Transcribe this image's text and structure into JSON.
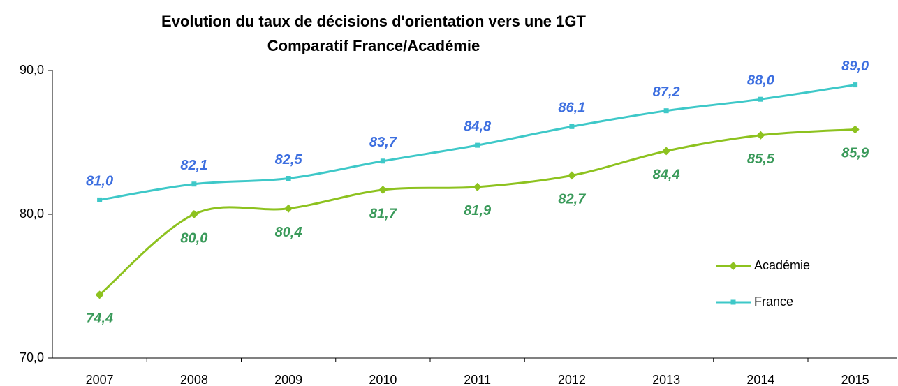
{
  "chart_data": {
    "type": "line",
    "title": "Evolution du taux de décisions d'orientation vers une 1GT",
    "subtitle": "Comparatif France/Académie",
    "categories": [
      "2007",
      "2008",
      "2009",
      "2010",
      "2011",
      "2012",
      "2013",
      "2014",
      "2015"
    ],
    "series": [
      {
        "name": "Académie",
        "color": "#8dc21f",
        "label_color": "#3a9a5a",
        "values": [
          74.4,
          80.0,
          80.4,
          81.7,
          81.9,
          82.7,
          84.4,
          85.5,
          85.9
        ],
        "value_labels": [
          "74,4",
          "80,0",
          "80,4",
          "81,7",
          "81,9",
          "82,7",
          "84,4",
          "85,5",
          "85,9"
        ]
      },
      {
        "name": "France",
        "color": "#3ec8c8",
        "label_color": "#3d6fe0",
        "values": [
          81.0,
          82.1,
          82.5,
          83.7,
          84.8,
          86.1,
          87.2,
          88.0,
          89.0
        ],
        "value_labels": [
          "81,0",
          "82,1",
          "82,5",
          "83,7",
          "84,8",
          "86,1",
          "87,2",
          "88,0",
          "89,0"
        ]
      }
    ],
    "ylim": [
      70,
      90
    ],
    "yticks": [
      {
        "value": 70,
        "label": "70,0"
      },
      {
        "value": 80,
        "label": "80,0"
      },
      {
        "value": 90,
        "label": "90,0"
      }
    ],
    "legend": "right"
  }
}
